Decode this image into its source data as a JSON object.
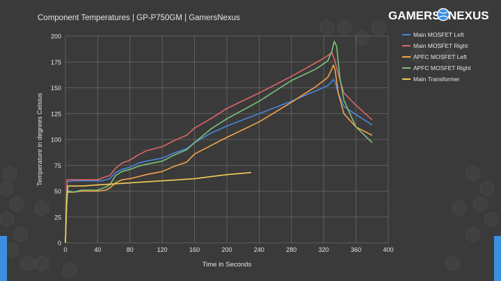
{
  "brand": {
    "logo_text": "GAMERSNEXUS"
  },
  "colors": {
    "background": "#3a3a3a",
    "grid": "#6a6a6a",
    "text": "#e6e6e6",
    "accent_blue": "#3b8fe0"
  },
  "chart_data": {
    "type": "line",
    "title": "Component Temperatures | GP-P750GM | GamersNexus",
    "xlabel": "Time in Seconds",
    "ylabel": "Temperature in degrees Celsius",
    "xlim": [
      0,
      400
    ],
    "ylim": [
      0,
      200
    ],
    "xticks": [
      0,
      40,
      80,
      120,
      160,
      200,
      240,
      280,
      320,
      360,
      400
    ],
    "yticks": [
      0,
      25,
      50,
      75,
      100,
      125,
      150,
      175,
      200
    ],
    "grid": true,
    "legend_position": "right",
    "series": [
      {
        "name": "Main MOSFET Left",
        "color": "#4a86e0",
        "points": [
          [
            0,
            0
          ],
          [
            2,
            59
          ],
          [
            10,
            60
          ],
          [
            30,
            60
          ],
          [
            45,
            60
          ],
          [
            55,
            62
          ],
          [
            62,
            68
          ],
          [
            70,
            71
          ],
          [
            80,
            73
          ],
          [
            90,
            77
          ],
          [
            100,
            79
          ],
          [
            120,
            82
          ],
          [
            135,
            87
          ],
          [
            150,
            91
          ],
          [
            160,
            97
          ],
          [
            180,
            106
          ],
          [
            200,
            113
          ],
          [
            240,
            125
          ],
          [
            280,
            137
          ],
          [
            310,
            147
          ],
          [
            325,
            152
          ],
          [
            330,
            156
          ],
          [
            332,
            158
          ],
          [
            334,
            156
          ],
          [
            338,
            145
          ],
          [
            345,
            132
          ],
          [
            360,
            124
          ],
          [
            380,
            114
          ]
        ]
      },
      {
        "name": "Main MOSFET Right",
        "color": "#e06666",
        "points": [
          [
            0,
            0
          ],
          [
            2,
            61
          ],
          [
            10,
            61
          ],
          [
            30,
            61
          ],
          [
            40,
            61
          ],
          [
            50,
            64
          ],
          [
            55,
            65
          ],
          [
            62,
            72
          ],
          [
            70,
            77
          ],
          [
            80,
            80
          ],
          [
            90,
            85
          ],
          [
            100,
            89
          ],
          [
            120,
            93
          ],
          [
            135,
            99
          ],
          [
            150,
            104
          ],
          [
            160,
            111
          ],
          [
            180,
            120
          ],
          [
            200,
            130
          ],
          [
            240,
            145
          ],
          [
            280,
            161
          ],
          [
            310,
            174
          ],
          [
            325,
            181
          ],
          [
            330,
            184
          ],
          [
            333,
            178
          ],
          [
            340,
            158
          ],
          [
            345,
            145
          ],
          [
            360,
            133
          ],
          [
            380,
            119
          ]
        ]
      },
      {
        "name": "APFC MOSFET Left",
        "color": "#f6a54b",
        "points": [
          [
            0,
            0
          ],
          [
            2,
            49
          ],
          [
            5,
            49
          ],
          [
            10,
            49
          ],
          [
            20,
            50
          ],
          [
            40,
            50
          ],
          [
            50,
            51
          ],
          [
            55,
            53
          ],
          [
            62,
            58
          ],
          [
            70,
            61
          ],
          [
            80,
            62
          ],
          [
            90,
            64
          ],
          [
            100,
            66
          ],
          [
            120,
            69
          ],
          [
            135,
            74
          ],
          [
            150,
            78
          ],
          [
            160,
            86
          ],
          [
            180,
            94
          ],
          [
            200,
            102
          ],
          [
            240,
            117
          ],
          [
            280,
            136
          ],
          [
            310,
            151
          ],
          [
            325,
            160
          ],
          [
            330,
            168
          ],
          [
            332,
            172
          ],
          [
            334,
            168
          ],
          [
            338,
            145
          ],
          [
            345,
            125
          ],
          [
            360,
            112
          ],
          [
            380,
            104
          ]
        ]
      },
      {
        "name": "APFC MOSFET Right",
        "color": "#7dc27a",
        "points": [
          [
            0,
            0
          ],
          [
            2,
            50
          ],
          [
            5,
            50
          ],
          [
            10,
            49
          ],
          [
            20,
            51
          ],
          [
            40,
            51
          ],
          [
            50,
            54
          ],
          [
            55,
            56
          ],
          [
            62,
            65
          ],
          [
            70,
            69
          ],
          [
            80,
            71
          ],
          [
            90,
            74
          ],
          [
            100,
            76
          ],
          [
            120,
            79
          ],
          [
            135,
            85
          ],
          [
            150,
            90
          ],
          [
            160,
            97
          ],
          [
            180,
            110
          ],
          [
            200,
            120
          ],
          [
            240,
            137
          ],
          [
            280,
            157
          ],
          [
            310,
            168
          ],
          [
            325,
            176
          ],
          [
            330,
            185
          ],
          [
            333,
            195
          ],
          [
            336,
            190
          ],
          [
            340,
            160
          ],
          [
            345,
            138
          ],
          [
            360,
            112
          ],
          [
            380,
            97
          ]
        ]
      },
      {
        "name": "Main Transformer",
        "color": "#f4ce5a",
        "points": [
          [
            0,
            0
          ],
          [
            1,
            30
          ],
          [
            3,
            55
          ],
          [
            10,
            55
          ],
          [
            20,
            55
          ],
          [
            40,
            56
          ],
          [
            60,
            57
          ],
          [
            80,
            58
          ],
          [
            100,
            59
          ],
          [
            120,
            60
          ],
          [
            140,
            61
          ],
          [
            160,
            62
          ],
          [
            180,
            64
          ],
          [
            200,
            66
          ],
          [
            230,
            68
          ]
        ]
      }
    ]
  }
}
